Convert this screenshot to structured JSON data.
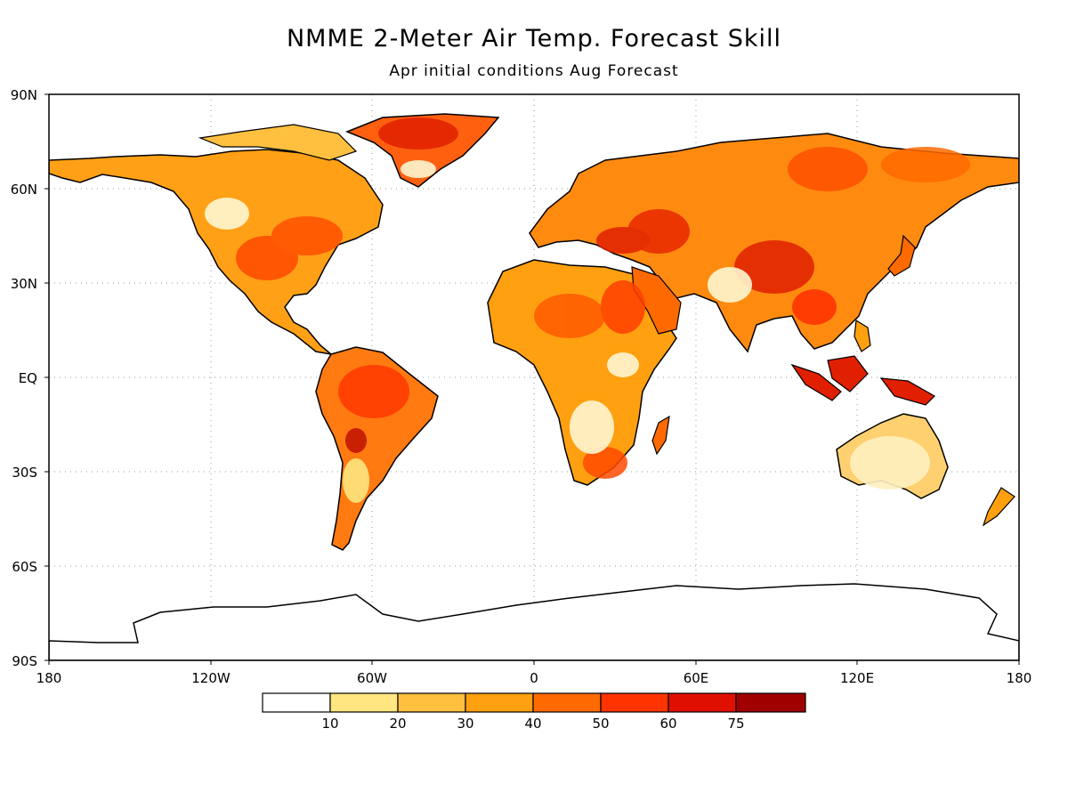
{
  "title": "NMME 2-Meter Air Temp. Forecast Skill",
  "subtitle": "Apr initial conditions   Aug Forecast",
  "lat_labels": [
    "90N",
    "60N",
    "30N",
    "EQ",
    "30S",
    "60S",
    "90S"
  ],
  "lon_labels": [
    "180",
    "120W",
    "60W",
    "0",
    "60E",
    "120E",
    "180"
  ],
  "colorbar": {
    "labels": [
      "10",
      "20",
      "30",
      "40",
      "50",
      "60",
      "75"
    ],
    "colors": [
      "#ffffff",
      "#ffe680",
      "#ffc040",
      "#ffa010",
      "#ff6a00",
      "#ff3300",
      "#e01000",
      "#a00000"
    ]
  }
}
